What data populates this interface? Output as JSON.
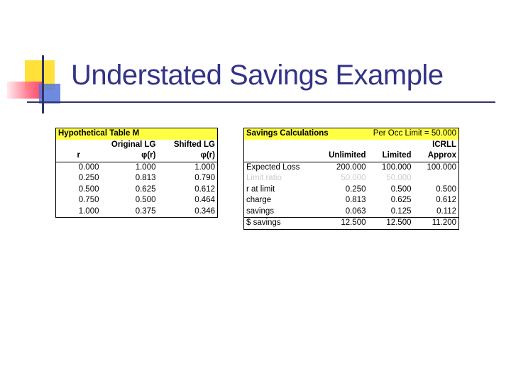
{
  "slide": {
    "title": "Understated Savings Example"
  },
  "table_m": {
    "title": "Hypothetical Table M",
    "header1": [
      "",
      "Original LG",
      "Shifted LG"
    ],
    "header2": [
      "r",
      "φ(r)",
      "φ(r)"
    ],
    "rows": [
      [
        "0.000",
        "1.000",
        "1.000"
      ],
      [
        "0.250",
        "0.813",
        "0.790"
      ],
      [
        "0.500",
        "0.625",
        "0.612"
      ],
      [
        "0.750",
        "0.500",
        "0.464"
      ],
      [
        "1.000",
        "0.375",
        "0.346"
      ]
    ]
  },
  "savings": {
    "title": "Savings Calculations",
    "limit_note": "Per Occ Limit = 50.000",
    "header1": [
      "",
      "",
      "",
      "ICRLL"
    ],
    "header2": [
      "",
      "Unlimited",
      "Limited",
      "Approx"
    ],
    "rows": [
      [
        "Expected Loss",
        "200.000",
        "100.000",
        "100.000"
      ],
      [
        "Limit ratio",
        "50.000",
        "50.000",
        ""
      ],
      [
        "r at limit",
        "0.250",
        "0.500",
        "0.500"
      ],
      [
        "charge",
        "0.813",
        "0.625",
        "0.612"
      ],
      [
        "savings",
        "0.063",
        "0.125",
        "0.112"
      ]
    ],
    "total_row": [
      "$ savings",
      "12.500",
      "12.500",
      "11.200"
    ]
  },
  "colors": {
    "title": "#333388",
    "highlight": "#ffff44",
    "accent_yellow": "#ffe13a",
    "accent_red": "#ff4a6d",
    "accent_blue": "#5577dd"
  }
}
